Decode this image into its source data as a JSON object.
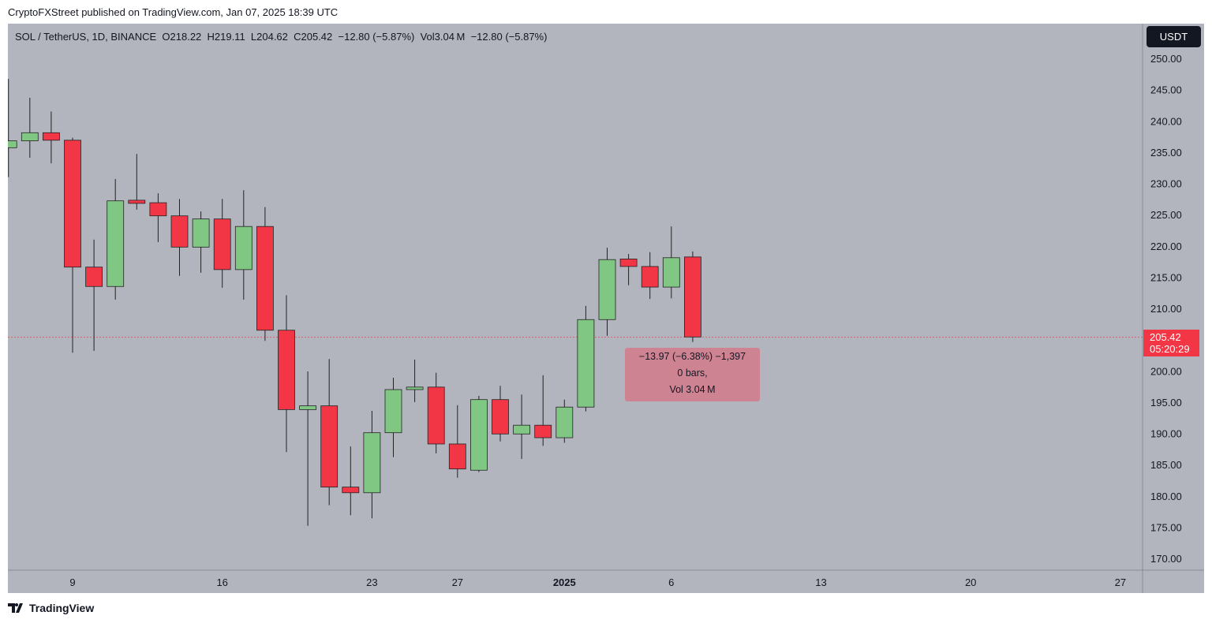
{
  "published": "CryptoFXStreet published on TradingView.com, Jan 07, 2025 18:39 UTC",
  "legend": "SOL / TetherUS, 1D, BINANCE  O218.22  H219.11  L204.62  C205.42  −12.80 (−5.87%)  Vol3.04 M  −12.80 (−5.87%)",
  "currency_button": "USDT",
  "last_price": "205.42",
  "countdown": "05:20:29",
  "tooltip": {
    "line1": "−13.97 (−6.38%) −1,397",
    "line2": "0 bars,",
    "line3": "Vol 3.04 M"
  },
  "brand": "TradingView",
  "colors": {
    "up": "#81c784",
    "down": "#f23645",
    "background": "#b2b5be"
  },
  "chart_data": {
    "type": "candlestick",
    "title": "SOL / TetherUS, 1D, BINANCE",
    "ylim": [
      167,
      253
    ],
    "y_ticks": [
      "250.00",
      "245.00",
      "240.00",
      "235.00",
      "230.00",
      "225.00",
      "220.00",
      "215.00",
      "210.00",
      "205.00",
      "200.00",
      "195.00",
      "190.00",
      "185.00",
      "180.00",
      "175.00",
      "170.00"
    ],
    "x_ticks": [
      {
        "date": "2024-12-09",
        "label": "9"
      },
      {
        "date": "2024-12-16",
        "label": "16"
      },
      {
        "date": "2024-12-23",
        "label": "23"
      },
      {
        "date": "2024-12-27",
        "label": "27"
      },
      {
        "date": "2025-01-01",
        "label": "2025"
      },
      {
        "date": "2025-01-06",
        "label": "6"
      },
      {
        "date": "2025-01-13",
        "label": "13"
      },
      {
        "date": "2025-01-20",
        "label": "20"
      },
      {
        "date": "2025-01-27",
        "label": "27"
      }
    ],
    "candles": [
      [
        "2024-12-06",
        235.7,
        246.7,
        231.0,
        236.8
      ],
      [
        "2024-12-07",
        236.8,
        243.7,
        234.1,
        238.1
      ],
      [
        "2024-12-08",
        238.1,
        241.5,
        233.2,
        236.9
      ],
      [
        "2024-12-09",
        236.9,
        237.3,
        202.9,
        216.6
      ],
      [
        "2024-12-10",
        216.6,
        221.0,
        203.2,
        213.5
      ],
      [
        "2024-12-11",
        213.5,
        230.7,
        211.4,
        227.2
      ],
      [
        "2024-12-12",
        227.3,
        234.7,
        225.8,
        226.8
      ],
      [
        "2024-12-13",
        226.9,
        228.4,
        220.6,
        224.8
      ],
      [
        "2024-12-14",
        224.8,
        227.5,
        215.2,
        219.8
      ],
      [
        "2024-12-15",
        219.8,
        225.5,
        215.7,
        224.3
      ],
      [
        "2024-12-16",
        224.3,
        227.5,
        213.3,
        216.2
      ],
      [
        "2024-12-17",
        216.2,
        228.9,
        211.4,
        223.1
      ],
      [
        "2024-12-18",
        223.1,
        226.2,
        204.8,
        206.5
      ],
      [
        "2024-12-19",
        206.5,
        212.1,
        187.0,
        193.8
      ],
      [
        "2024-12-20",
        193.8,
        199.9,
        175.2,
        194.4
      ],
      [
        "2024-12-21",
        194.4,
        201.9,
        178.5,
        181.4
      ],
      [
        "2024-12-22",
        181.4,
        187.9,
        176.9,
        180.5
      ],
      [
        "2024-12-23",
        180.5,
        193.6,
        176.4,
        190.1
      ],
      [
        "2024-12-24",
        190.1,
        198.9,
        186.2,
        197.0
      ],
      [
        "2024-12-25",
        197.0,
        201.8,
        195.0,
        197.4
      ],
      [
        "2024-12-26",
        197.4,
        199.7,
        186.8,
        188.3
      ],
      [
        "2024-12-27",
        188.3,
        194.5,
        182.9,
        184.3
      ],
      [
        "2024-12-28",
        184.1,
        196.0,
        183.8,
        195.4
      ],
      [
        "2024-12-29",
        195.4,
        197.6,
        188.7,
        189.9
      ],
      [
        "2024-12-30",
        189.9,
        196.2,
        185.9,
        191.3
      ],
      [
        "2024-12-31",
        191.3,
        199.3,
        188.0,
        189.3
      ],
      [
        "2025-01-01",
        189.3,
        195.4,
        188.5,
        194.2
      ],
      [
        "2025-01-02",
        194.2,
        210.4,
        193.5,
        208.2
      ],
      [
        "2025-01-03",
        208.2,
        219.7,
        205.6,
        217.8
      ],
      [
        "2025-01-04",
        217.9,
        218.7,
        213.7,
        216.7
      ],
      [
        "2025-01-05",
        216.7,
        219.0,
        211.5,
        213.4
      ],
      [
        "2025-01-06",
        213.4,
        223.1,
        211.6,
        218.1
      ],
      [
        "2025-01-07",
        218.22,
        219.11,
        204.62,
        205.42
      ]
    ]
  }
}
